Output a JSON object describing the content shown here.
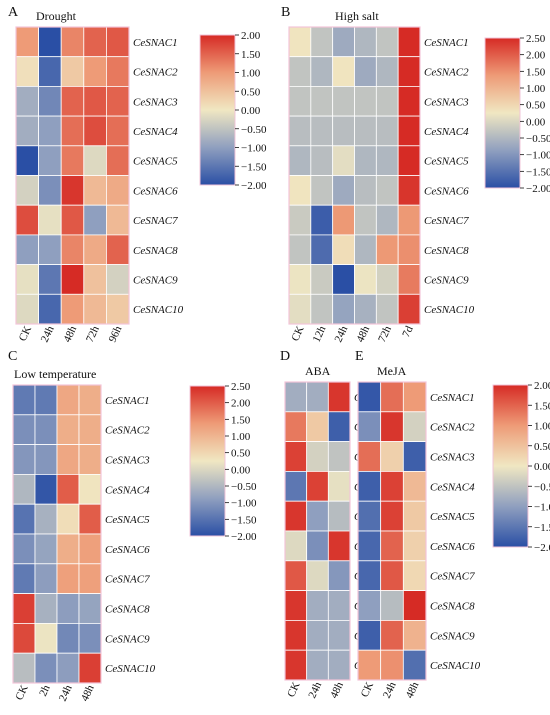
{
  "figure": {
    "title": ""
  },
  "gradient": {
    "low": "#2a4fa5",
    "mid": "#f0e7c2",
    "high": "#d62b25"
  },
  "chart_data": [
    {
      "id": "A",
      "type": "heatmap",
      "letter": "A",
      "title": "Drought",
      "x": [
        "CK",
        "24h",
        "48h",
        "72h",
        "96h"
      ],
      "y": [
        "CeSNAC1",
        "CeSNAC2",
        "CeSNAC3",
        "CeSNAC4",
        "CeSNAC5",
        "CeSNAC6",
        "CeSNAC7",
        "CeSNAC8",
        "CeSNAC9",
        "CeSNAC10"
      ],
      "values": [
        [
          1.0,
          -2.0,
          1.2,
          1.5,
          1.6
        ],
        [
          0.1,
          -1.7,
          0.4,
          1.0,
          1.3
        ],
        [
          -0.8,
          -1.3,
          1.5,
          1.6,
          1.5
        ],
        [
          -0.8,
          -1.0,
          1.4,
          1.7,
          1.4
        ],
        [
          -2.0,
          -1.0,
          1.3,
          -0.2,
          1.4
        ],
        [
          -0.3,
          -1.2,
          1.9,
          0.6,
          0.8
        ],
        [
          1.7,
          -0.1,
          1.6,
          -1.0,
          0.6
        ],
        [
          -1.0,
          -1.0,
          1.2,
          0.8,
          1.5
        ],
        [
          -0.1,
          -1.5,
          2.0,
          0.5,
          -0.3
        ],
        [
          -0.2,
          -1.7,
          1.0,
          0.6,
          0.4
        ]
      ],
      "colorbar": {
        "min": -2.0,
        "max": 2.0,
        "ticks": [
          "2.00",
          "1.50",
          "1.00",
          "0.50",
          "0.00",
          "−0.50",
          "−1.00",
          "−1.50",
          "−2.00"
        ]
      }
    },
    {
      "id": "B",
      "type": "heatmap",
      "letter": "B",
      "title": "High salt",
      "x": [
        "CK",
        "12h",
        "24h",
        "48h",
        "72h",
        "7d"
      ],
      "y": [
        "CeSNAC1",
        "CeSNAC2",
        "CeSNAC3",
        "CeSNAC4",
        "CeSNAC5",
        "CeSNAC6",
        "CeSNAC7",
        "CeSNAC8",
        "CeSNAC9",
        "CeSNAC10"
      ],
      "values": [
        [
          0.3,
          -0.3,
          -0.7,
          -0.5,
          -0.3,
          2.5
        ],
        [
          -0.3,
          -0.5,
          0.3,
          -0.7,
          -0.5,
          2.5
        ],
        [
          -0.3,
          -0.3,
          -0.3,
          -0.3,
          -0.3,
          2.5
        ],
        [
          -0.4,
          -0.4,
          -0.4,
          -0.4,
          -0.4,
          2.5
        ],
        [
          -0.5,
          -0.4,
          0.1,
          -0.5,
          -0.5,
          2.5
        ],
        [
          0.3,
          -0.3,
          -0.7,
          -0.4,
          -0.3,
          2.4
        ],
        [
          -0.2,
          -1.8,
          1.4,
          -0.3,
          -0.5,
          1.4
        ],
        [
          -0.3,
          -1.6,
          0.4,
          -0.5,
          1.4,
          1.5
        ],
        [
          0.2,
          -0.2,
          -2.0,
          0.2,
          -0.1,
          1.7
        ],
        [
          0.1,
          -0.3,
          -0.8,
          -0.6,
          -0.3,
          2.3
        ]
      ],
      "colorbar": {
        "min": -2.0,
        "max": 2.5,
        "ticks": [
          "2.50",
          "2.00",
          "1.50",
          "1.00",
          "0.50",
          "0.00",
          "−0.50",
          "−1.00",
          "−1.50",
          "−2.00"
        ]
      }
    },
    {
      "id": "C",
      "type": "heatmap",
      "letter": "C",
      "title": "Low temperature",
      "x": [
        "CK",
        "2h",
        "24h",
        "48h"
      ],
      "y": [
        "CeSNAC1",
        "CeSNAC2",
        "CeSNAC3",
        "CeSNAC4",
        "CeSNAC5",
        "CeSNAC6",
        "CeSNAC7",
        "CeSNAC8",
        "CeSNAC9",
        "CeSNAC10"
      ],
      "values": [
        [
          -1.4,
          -1.4,
          1.2,
          1.1
        ],
        [
          -1.1,
          -1.1,
          1.1,
          1.1
        ],
        [
          -1.0,
          -1.0,
          1.2,
          1.1
        ],
        [
          -0.5,
          -1.9,
          2.0,
          0.3
        ],
        [
          -1.5,
          -0.6,
          0.4,
          2.0
        ],
        [
          -1.1,
          -0.8,
          1.1,
          1.3
        ],
        [
          -1.4,
          -0.9,
          1.3,
          1.3
        ],
        [
          2.3,
          -0.6,
          -0.9,
          -0.8
        ],
        [
          2.2,
          0.2,
          -1.2,
          -1.1
        ],
        [
          -0.4,
          -1.1,
          -0.9,
          2.3
        ]
      ],
      "colorbar": {
        "min": -2.0,
        "max": 2.5,
        "ticks": [
          "2.50",
          "2.00",
          "1.50",
          "1.00",
          "0.50",
          "0.00",
          "−0.50",
          "−1.00",
          "−1.50",
          "−2.00"
        ]
      }
    },
    {
      "id": "D",
      "type": "heatmap",
      "letter": "D",
      "title": "ABA",
      "x": [
        "CK",
        "24h",
        "48h"
      ],
      "y": [
        "CeSNAC1",
        "CeSNAC2",
        "CeSNAC3",
        "CeSNAC4",
        "CeSNAC5",
        "CeSNAC6",
        "CeSNAC7",
        "CeSNAC8",
        "CeSNAC9",
        "CeSNAC10"
      ],
      "values": [
        [
          -0.8,
          -0.8,
          1.9
        ],
        [
          1.3,
          0.4,
          -1.8
        ],
        [
          1.8,
          -0.3,
          -0.5
        ],
        [
          -1.5,
          1.8,
          -0.1
        ],
        [
          1.9,
          -1.0,
          -0.6
        ],
        [
          -0.2,
          -1.2,
          1.9
        ],
        [
          1.6,
          -0.2,
          -1.1
        ],
        [
          1.9,
          -0.8,
          -0.8
        ],
        [
          1.9,
          -0.8,
          -0.8
        ],
        [
          1.9,
          -0.8,
          -0.8
        ]
      ]
    },
    {
      "id": "E",
      "type": "heatmap",
      "letter": "E",
      "title": "MeJA",
      "x": [
        "CK",
        "24h",
        "48h"
      ],
      "y": [
        "CeSNAC1",
        "CeSNAC2",
        "CeSNAC3",
        "CeSNAC4",
        "CeSNAC5",
        "CeSNAC6",
        "CeSNAC7",
        "CeSNAC8",
        "CeSNAC9",
        "CeSNAC10"
      ],
      "values": [
        [
          -1.9,
          1.4,
          1.0
        ],
        [
          -1.2,
          1.9,
          -0.3
        ],
        [
          1.4,
          0.3,
          -1.8
        ],
        [
          -1.8,
          1.8,
          0.6
        ],
        [
          -1.6,
          1.8,
          0.4
        ],
        [
          -1.7,
          1.5,
          0.3
        ],
        [
          -1.7,
          1.6,
          0.2
        ],
        [
          -1.0,
          -0.6,
          2.0
        ],
        [
          -1.8,
          1.5,
          0.7
        ],
        [
          1.0,
          1.1,
          -1.6
        ]
      ],
      "colorbar": {
        "min": -2.0,
        "max": 2.0,
        "ticks": [
          "2.00",
          "1.50",
          "1.00",
          "0.50",
          "0.00",
          "−0.50",
          "−1.00",
          "−1.50",
          "−2.00"
        ]
      }
    }
  ]
}
